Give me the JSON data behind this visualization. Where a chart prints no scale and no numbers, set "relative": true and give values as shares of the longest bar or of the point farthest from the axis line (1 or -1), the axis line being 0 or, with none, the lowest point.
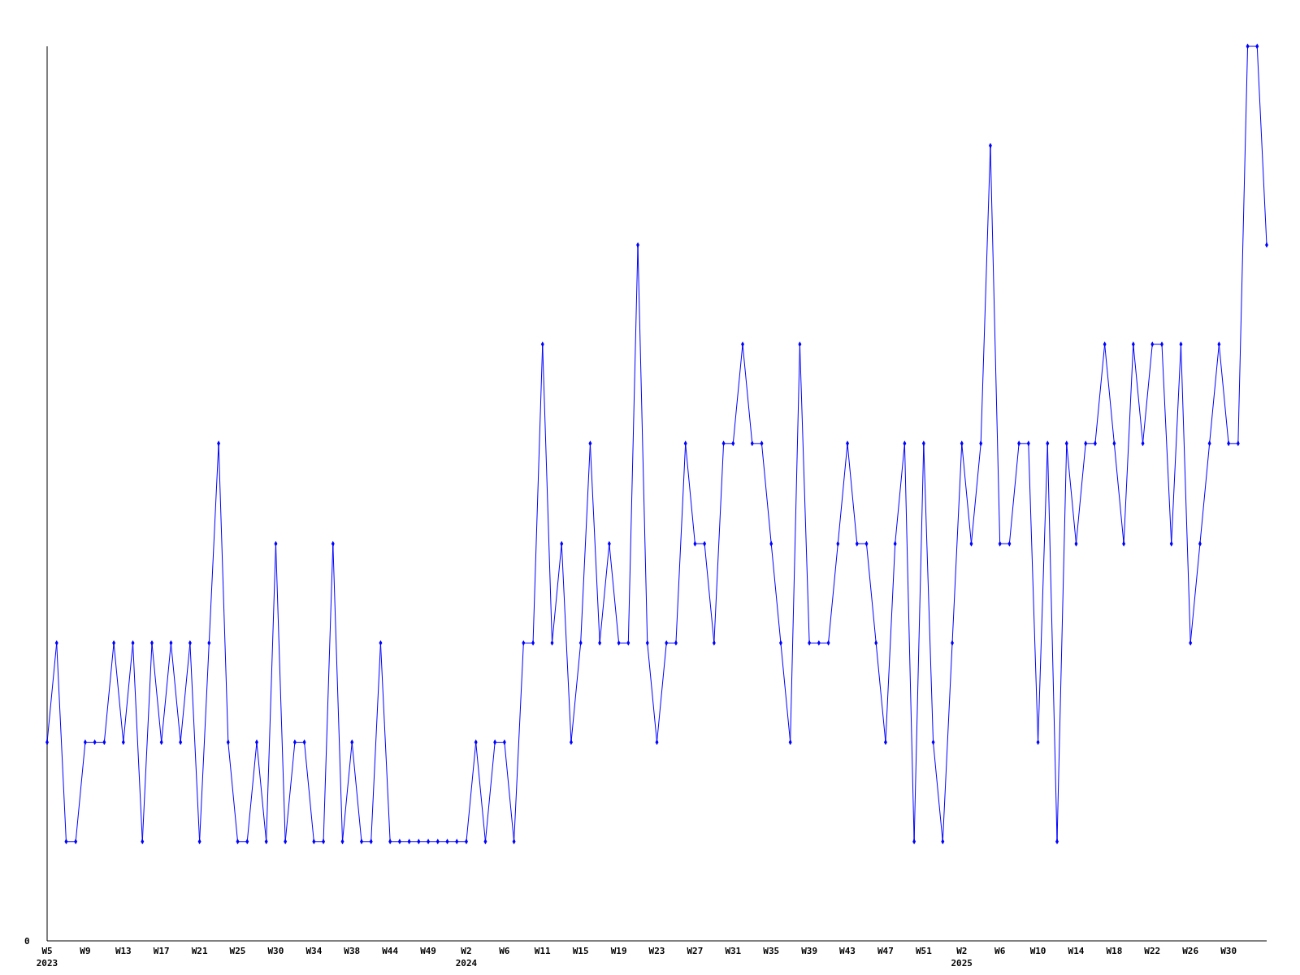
{
  "chart_data": {
    "type": "line",
    "relative": true,
    "marker": "diamond",
    "line_style": "solid",
    "annotations": [
      "0"
    ],
    "categories": [
      "W5\n2023",
      null,
      null,
      null,
      "W9",
      null,
      null,
      null,
      "W13",
      null,
      null,
      null,
      "W17",
      null,
      null,
      null,
      "W21",
      null,
      null,
      null,
      "W25",
      null,
      null,
      null,
      "W30",
      null,
      null,
      null,
      "W34",
      null,
      null,
      null,
      "W38",
      null,
      null,
      null,
      "W44",
      null,
      null,
      null,
      "W49",
      null,
      null,
      null,
      "W2\n2024",
      null,
      null,
      null,
      "W6",
      null,
      null,
      null,
      "W11",
      null,
      null,
      null,
      "W15",
      null,
      null,
      null,
      "W19",
      null,
      null,
      null,
      "W23",
      null,
      null,
      null,
      "W27",
      null,
      null,
      null,
      "W31",
      null,
      null,
      null,
      "W35",
      null,
      null,
      null,
      "W39",
      null,
      null,
      null,
      "W43",
      null,
      null,
      null,
      "W47",
      null,
      null,
      null,
      "W51",
      null,
      null,
      null,
      "W2\n2025",
      null,
      null,
      null,
      "W6",
      null,
      null,
      null,
      "W10",
      null,
      null,
      null,
      "W14",
      null,
      null,
      null,
      "W18",
      null,
      null,
      null,
      "W22",
      null,
      null,
      null,
      "W26",
      null,
      null,
      null,
      "W30",
      null,
      null,
      null,
      null
    ],
    "series": [
      {
        "color": "#0000ff",
        "values": [
          0.222,
          0.333,
          0.111,
          0.111,
          0.222,
          0.222,
          0.222,
          0.333,
          0.222,
          0.333,
          0.111,
          0.333,
          0.222,
          0.333,
          0.222,
          0.333,
          0.111,
          0.333,
          0.556,
          0.222,
          0.111,
          0.111,
          0.222,
          0.111,
          0.444,
          0.111,
          0.222,
          0.222,
          0.111,
          0.111,
          0.444,
          0.111,
          0.222,
          0.111,
          0.111,
          0.333,
          0.111,
          0.111,
          0.111,
          0.111,
          0.111,
          0.111,
          0.111,
          0.111,
          0.111,
          0.222,
          0.111,
          0.222,
          0.222,
          0.111,
          0.333,
          0.333,
          0.667,
          0.333,
          0.444,
          0.222,
          0.333,
          0.556,
          0.333,
          0.444,
          0.333,
          0.333,
          0.778,
          0.333,
          0.222,
          0.333,
          0.333,
          0.556,
          0.444,
          0.444,
          0.333,
          0.556,
          0.556,
          0.667,
          0.556,
          0.556,
          0.444,
          0.333,
          0.222,
          0.667,
          0.333,
          0.333,
          0.333,
          0.444,
          0.556,
          0.444,
          0.444,
          0.333,
          0.222,
          0.444,
          0.556,
          0.111,
          0.556,
          0.222,
          0.111,
          0.333,
          0.556,
          0.444,
          0.556,
          0.889,
          0.444,
          0.444,
          0.556,
          0.556,
          0.222,
          0.556,
          0.111,
          0.556,
          0.444,
          0.556,
          0.556,
          0.667,
          0.556,
          0.444,
          0.667,
          0.556,
          0.667,
          0.667,
          0.444,
          0.667,
          0.333,
          0.444,
          0.556,
          0.667,
          0.556,
          0.556,
          1,
          1,
          0.778
        ]
      }
    ]
  }
}
